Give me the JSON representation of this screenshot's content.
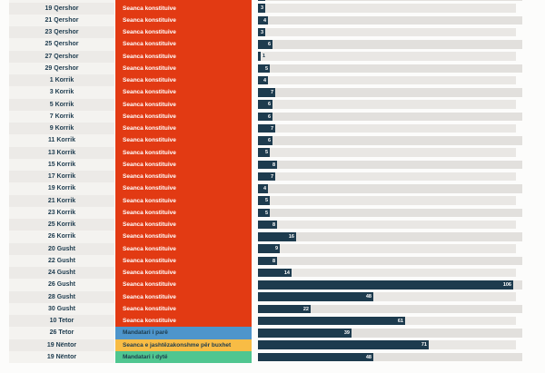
{
  "page": {
    "background": "#fcfcfb"
  },
  "chart_data": {
    "type": "bar",
    "orientation": "horizontal",
    "title": "",
    "xlabel": "",
    "ylabel": "",
    "max_value": 106,
    "bar_color": "#1d3b4e",
    "value_label_color_inside": "#ffffff",
    "value_label_color_outside": "#1d3b4e",
    "session_types": [
      {
        "label": "Seanca konstituive",
        "color": "#e23a13",
        "text_color": "#ffffff"
      },
      {
        "label": "Mandatari i parë",
        "color": "#4e95cb",
        "text_color": "#1d3b4e"
      },
      {
        "label": "Seanca e jashtëzakonshme për buxhet",
        "color": "#f8bc45",
        "text_color": "#1d3b4e"
      },
      {
        "label": "Mandatari i dytë",
        "color": "#4fc690",
        "text_color": "#1d3b4e"
      }
    ],
    "rows": [
      {
        "date": "19 Qershor",
        "session": "Seanca konstituive",
        "value": 3
      },
      {
        "date": "21 Qershor",
        "session": "Seanca konstituive",
        "value": 4
      },
      {
        "date": "23 Qershor",
        "session": "Seanca konstituive",
        "value": 3
      },
      {
        "date": "25 Qershor",
        "session": "Seanca konstituive",
        "value": 6
      },
      {
        "date": "27 Qershor",
        "session": "Seanca konstituive",
        "value": 1
      },
      {
        "date": "29 Qershor",
        "session": "Seanca konstituive",
        "value": 5
      },
      {
        "date": "1 Korrik",
        "session": "Seanca konstituive",
        "value": 4
      },
      {
        "date": "3 Korrik",
        "session": "Seanca konstituive",
        "value": 7
      },
      {
        "date": "5 Korrik",
        "session": "Seanca konstituive",
        "value": 6
      },
      {
        "date": "7 Korrik",
        "session": "Seanca konstituive",
        "value": 6
      },
      {
        "date": "9 Korrik",
        "session": "Seanca konstituive",
        "value": 7
      },
      {
        "date": "11 Korrik",
        "session": "Seanca konstituive",
        "value": 6
      },
      {
        "date": "13 Korrik",
        "session": "Seanca konstituive",
        "value": 5
      },
      {
        "date": "15 Korrik",
        "session": "Seanca konstituive",
        "value": 8
      },
      {
        "date": "17 Korrik",
        "session": "Seanca konstituive",
        "value": 7
      },
      {
        "date": "19 Korrik",
        "session": "Seanca konstituive",
        "value": 4
      },
      {
        "date": "21 Korrik",
        "session": "Seanca konstituive",
        "value": 5
      },
      {
        "date": "23 Korrik",
        "session": "Seanca konstituive",
        "value": 5
      },
      {
        "date": "25 Korrik",
        "session": "Seanca konstituive",
        "value": 8
      },
      {
        "date": "26 Korrik",
        "session": "Seanca konstituive",
        "value": 16
      },
      {
        "date": "20 Gusht",
        "session": "Seanca konstituive",
        "value": 9
      },
      {
        "date": "22 Gusht",
        "session": "Seanca konstituive",
        "value": 8
      },
      {
        "date": "24 Gusht",
        "session": "Seanca konstituive",
        "value": 14
      },
      {
        "date": "26 Gusht",
        "session": "Seanca konstituive",
        "value": 106
      },
      {
        "date": "28 Gusht",
        "session": "Seanca konstituive",
        "value": 48
      },
      {
        "date": "30 Gusht",
        "session": "Seanca konstituive",
        "value": 22
      },
      {
        "date": "10 Tetor",
        "session": "Seanca konstituive",
        "value": 61
      },
      {
        "date": "26 Tetor",
        "session": "Mandatari i parë",
        "value": 39
      },
      {
        "date": "19 Nëntor",
        "session": "Seanca e jashtëzakonshme për buxhet",
        "value": 71
      },
      {
        "date": "19 Nëntor",
        "session": "Mandatari i dytë",
        "value": 48
      }
    ],
    "top_clipped_row": {
      "date": "",
      "session": "Seanca konstituive",
      "approx_value": 3
    }
  }
}
